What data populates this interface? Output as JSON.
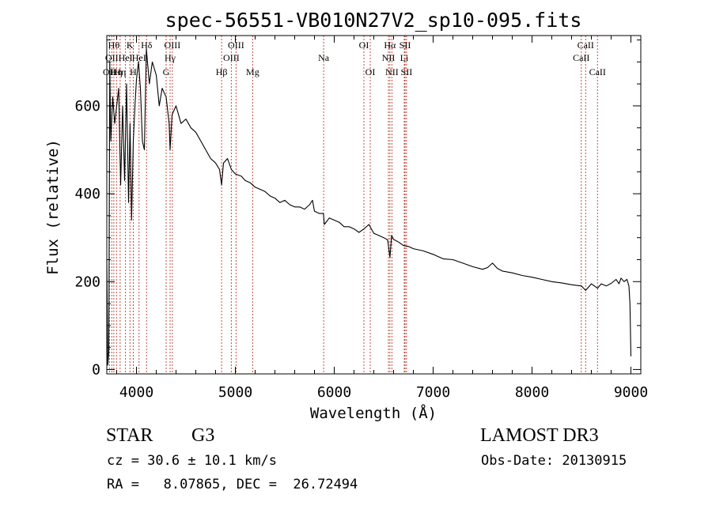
{
  "colors": {
    "line": "#000000",
    "marker": "#c0392b",
    "background": "#ffffff"
  },
  "chart_data": {
    "type": "line",
    "title": "spec-56551-VB010N27V2_sp10-095.fits",
    "xlabel": "Wavelength (Å)",
    "ylabel": "Flux (relative)",
    "xlim": [
      3700,
      9100
    ],
    "ylim": [
      -10,
      760
    ],
    "xticks": [
      4000,
      5000,
      6000,
      7000,
      8000,
      9000
    ],
    "xtick_labels": [
      "4000",
      "5000",
      "6000",
      "7000",
      "8000",
      "9000"
    ],
    "yticks": [
      0,
      200,
      400,
      600
    ],
    "ytick_labels": [
      "0",
      "200",
      "400",
      "600"
    ],
    "series": [
      {
        "name": "spectrum",
        "x": [
          3700,
          3710,
          3720,
          3730,
          3740,
          3760,
          3780,
          3800,
          3820,
          3840,
          3860,
          3880,
          3900,
          3920,
          3935,
          3950,
          3968,
          3985,
          4000,
          4020,
          4040,
          4060,
          4080,
          4100,
          4130,
          4160,
          4200,
          4230,
          4260,
          4300,
          4330,
          4340,
          4360,
          4400,
          4450,
          4500,
          4550,
          4600,
          4650,
          4700,
          4750,
          4800,
          4840,
          4861,
          4880,
          4920,
          4960,
          5000,
          5060,
          5100,
          5150,
          5200,
          5250,
          5300,
          5350,
          5400,
          5450,
          5500,
          5550,
          5600,
          5650,
          5700,
          5750,
          5780,
          5800,
          5850,
          5890,
          5900,
          5950,
          6000,
          6050,
          6100,
          6150,
          6200,
          6250,
          6300,
          6350,
          6400,
          6450,
          6500,
          6540,
          6563,
          6580,
          6600,
          6650,
          6700,
          6750,
          6800,
          6900,
          7000,
          7100,
          7200,
          7300,
          7400,
          7500,
          7550,
          7600,
          7650,
          7700,
          7800,
          7900,
          8000,
          8100,
          8200,
          8300,
          8400,
          8500,
          8542,
          8600,
          8662,
          8700,
          8750,
          8800,
          8850,
          8880,
          8900,
          8930,
          8960,
          8980,
          8990,
          9000
        ],
        "values": [
          250,
          10,
          40,
          700,
          520,
          620,
          560,
          600,
          640,
          420,
          600,
          430,
          650,
          380,
          560,
          340,
          520,
          600,
          660,
          700,
          640,
          520,
          500,
          730,
          650,
          700,
          670,
          600,
          640,
          620,
          560,
          500,
          580,
          600,
          560,
          570,
          550,
          540,
          520,
          500,
          480,
          470,
          455,
          420,
          470,
          480,
          455,
          445,
          440,
          430,
          425,
          415,
          410,
          405,
          395,
          390,
          380,
          385,
          375,
          370,
          370,
          365,
          375,
          385,
          360,
          355,
          355,
          330,
          345,
          340,
          335,
          325,
          325,
          320,
          312,
          320,
          330,
          310,
          305,
          300,
          295,
          255,
          305,
          296,
          290,
          282,
          280,
          275,
          270,
          262,
          252,
          250,
          242,
          234,
          228,
          232,
          242,
          230,
          224,
          220,
          214,
          210,
          205,
          200,
          197,
          193,
          190,
          180,
          195,
          185,
          195,
          190,
          196,
          205,
          195,
          208,
          200,
          205,
          190,
          150,
          30
        ]
      }
    ],
    "line_markers": [
      {
        "wave": 3727,
        "label": "OII",
        "row": 3
      },
      {
        "wave": 3750,
        "label": "OII",
        "row": 2
      },
      {
        "wave": 3771,
        "label": "Hθ",
        "row": 1
      },
      {
        "wave": 3798,
        "label": "Hη",
        "row": 3
      },
      {
        "wave": 3835,
        "label": "Hη",
        "row": 3
      },
      {
        "wave": 3889,
        "label": "HeI",
        "row": 2
      },
      {
        "wave": 3934,
        "label": "K",
        "row": 1
      },
      {
        "wave": 3968,
        "label": "H",
        "row": 3
      },
      {
        "wave": 4026,
        "label": "HeI",
        "row": 2
      },
      {
        "wave": 4102,
        "label": "Hδ",
        "row": 1
      },
      {
        "wave": 4300,
        "label": "G",
        "row": 3
      },
      {
        "wave": 4340,
        "label": "Hγ",
        "row": 2
      },
      {
        "wave": 4363,
        "label": "OIII",
        "row": 1
      },
      {
        "wave": 4861,
        "label": "Hβ",
        "row": 3
      },
      {
        "wave": 4959,
        "label": "OIII",
        "row": 2
      },
      {
        "wave": 5007,
        "label": "OIII",
        "row": 1
      },
      {
        "wave": 5175,
        "label": "Mg",
        "row": 3
      },
      {
        "wave": 5893,
        "label": "Na",
        "row": 2
      },
      {
        "wave": 6300,
        "label": "OI",
        "row": 1
      },
      {
        "wave": 6364,
        "label": "OI",
        "row": 3
      },
      {
        "wave": 6548,
        "label": "NII",
        "row": 2
      },
      {
        "wave": 6563,
        "label": "Hα",
        "row": 1
      },
      {
        "wave": 6583,
        "label": "NII",
        "row": 3
      },
      {
        "wave": 6708,
        "label": "Li",
        "row": 2
      },
      {
        "wave": 6716,
        "label": "SII",
        "row": 1
      },
      {
        "wave": 6731,
        "label": "SII",
        "row": 3
      },
      {
        "wave": 8498,
        "label": "CaII",
        "row": 2
      },
      {
        "wave": 8542,
        "label": "CaII",
        "row": 1
      },
      {
        "wave": 8662,
        "label": "CaII",
        "row": 3
      }
    ]
  },
  "info": {
    "class_label": "STAR",
    "subclass": "G3",
    "redshift": "cz = 30.6 ± 10.1 km/s",
    "coords": "RA =   8.07865, DEC =  26.72494",
    "survey": "LAMOST DR3",
    "obs_date": "Obs-Date: 20130915"
  }
}
